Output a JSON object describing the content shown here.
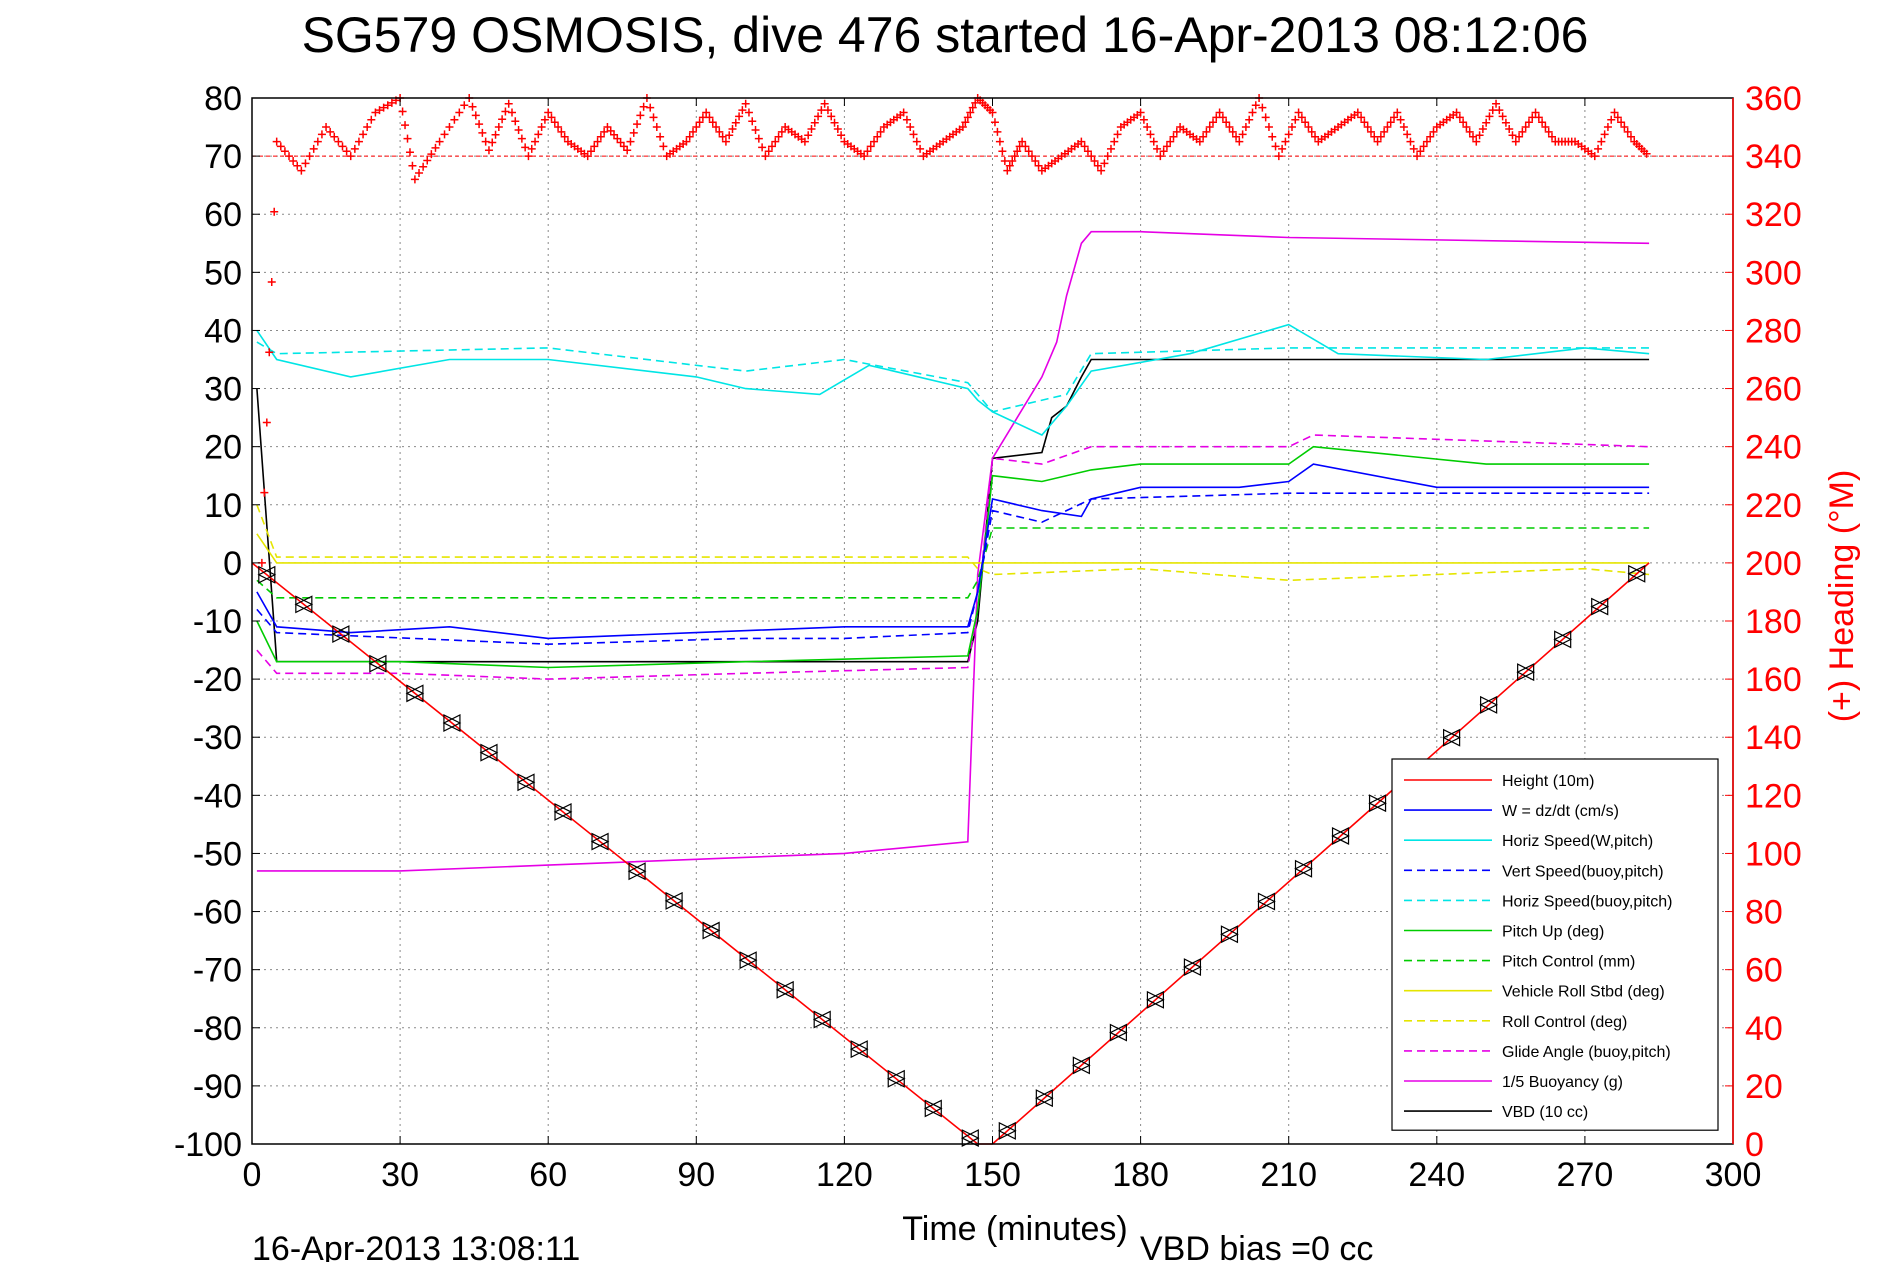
{
  "chart_data": {
    "type": "line",
    "title": "SG579 OSMOSIS, dive 476 started 16-Apr-2013 08:12:06",
    "xlabel": "Time (minutes)",
    "ylabel_right": "(+) Heading (°M)",
    "footer_date": "16-Apr-2013 13:08:11",
    "footer_note": "VBD bias =0 cc",
    "xlim": [
      0,
      300
    ],
    "ylim": [
      -100,
      80
    ],
    "ylim_right": [
      0,
      360
    ],
    "x_ticks": [
      "0",
      "30",
      "60",
      "90",
      "120",
      "150",
      "180",
      "210",
      "240",
      "270",
      "300"
    ],
    "y_ticks": [
      "80",
      "70",
      "60",
      "50",
      "40",
      "30",
      "20",
      "10",
      "0",
      "-10",
      "-20",
      "-30",
      "-40",
      "-50",
      "-60",
      "-70",
      "-80",
      "-90",
      "-100"
    ],
    "y_ticks_right": [
      "360",
      "340",
      "320",
      "300",
      "280",
      "260",
      "240",
      "220",
      "200",
      "180",
      "160",
      "140",
      "120",
      "100",
      "80",
      "60",
      "40",
      "20",
      "0"
    ],
    "grid": true,
    "legend_position": "bottom-right",
    "series": [
      {
        "name": "Height (10m)",
        "color": "#ff0000",
        "style": "solid",
        "x": [
          0,
          147,
          150,
          283
        ],
        "y": [
          0,
          -100,
          -100,
          0
        ]
      },
      {
        "name": "W = dz/dt (cm/s)",
        "color": "#0000ff",
        "style": "solid",
        "x": [
          1,
          5,
          20,
          40,
          60,
          90,
          120,
          145,
          147,
          150,
          160,
          168,
          170,
          180,
          200,
          210,
          215,
          240,
          260,
          283
        ],
        "y": [
          -5,
          -11,
          -12,
          -11,
          -13,
          -12,
          -11,
          -11,
          -5,
          11,
          9,
          8,
          11,
          13,
          13,
          14,
          17,
          13,
          13,
          13
        ]
      },
      {
        "name": "Horiz Speed(W,pitch)",
        "color": "#00e5e5",
        "style": "solid",
        "x": [
          1,
          5,
          20,
          40,
          60,
          90,
          100,
          115,
          125,
          145,
          147,
          150,
          160,
          165,
          170,
          190,
          210,
          220,
          250,
          270,
          283
        ],
        "y": [
          40,
          35,
          32,
          35,
          35,
          32,
          30,
          29,
          34,
          30,
          28,
          26,
          22,
          27,
          33,
          36,
          41,
          36,
          35,
          37,
          36
        ]
      },
      {
        "name": "Vert Speed(buoy,pitch)",
        "color": "#0000ff",
        "style": "dashed",
        "x": [
          1,
          5,
          60,
          100,
          120,
          145,
          147,
          150,
          160,
          170,
          210,
          240,
          283
        ],
        "y": [
          -8,
          -12,
          -14,
          -13,
          -13,
          -12,
          -5,
          9,
          7,
          11,
          12,
          12,
          12
        ]
      },
      {
        "name": "Horiz Speed(buoy,pitch)",
        "color": "#00e5e5",
        "style": "dashed",
        "x": [
          1,
          5,
          60,
          100,
          120,
          145,
          147,
          150,
          165,
          170,
          210,
          283
        ],
        "y": [
          38,
          36,
          37,
          33,
          35,
          31,
          29,
          26,
          29,
          36,
          37,
          37
        ]
      },
      {
        "name": "Pitch Up (deg)",
        "color": "#00cc00",
        "style": "solid",
        "x": [
          1,
          5,
          30,
          60,
          100,
          145,
          147,
          150,
          160,
          170,
          180,
          210,
          215,
          250,
          283
        ],
        "y": [
          -10,
          -17,
          -17,
          -18,
          -17,
          -16,
          -8,
          15,
          14,
          16,
          17,
          17,
          20,
          17,
          17
        ]
      },
      {
        "name": "Pitch Control (mm)",
        "color": "#00cc00",
        "style": "dashed",
        "x": [
          1,
          5,
          145,
          147,
          150,
          160,
          283
        ],
        "y": [
          -3,
          -6,
          -6,
          -3,
          6,
          6,
          6
        ]
      },
      {
        "name": "Vehicle Roll Stbd (deg)",
        "color": "#e5e500",
        "style": "solid",
        "x": [
          1,
          5,
          30,
          60,
          90,
          120,
          145,
          147,
          150,
          180,
          210,
          240,
          270,
          283
        ],
        "y": [
          5,
          0,
          0,
          0,
          0,
          0,
          0,
          0,
          0,
          0,
          0,
          0,
          0,
          0
        ]
      },
      {
        "name": "Roll Control (deg)",
        "color": "#e5e500",
        "style": "dashed",
        "x": [
          1,
          5,
          30,
          60,
          90,
          120,
          145,
          147,
          150,
          180,
          210,
          240,
          270,
          283
        ],
        "y": [
          10,
          1,
          1,
          1,
          1,
          1,
          1,
          -1,
          -2,
          -1,
          -3,
          -2,
          -1,
          -2
        ]
      },
      {
        "name": "Glide Angle (buoy,pitch)",
        "color": "#e500e5",
        "style": "dashed",
        "x": [
          1,
          5,
          30,
          60,
          100,
          145,
          147,
          150,
          160,
          170,
          210,
          215,
          283
        ],
        "y": [
          -15,
          -19,
          -19,
          -20,
          -19,
          -18,
          -8,
          18,
          17,
          20,
          20,
          22,
          20
        ]
      },
      {
        "name": "1/5 Buoyancy (g)",
        "color": "#e500e5",
        "style": "solid",
        "x": [
          1,
          5,
          30,
          60,
          90,
          120,
          145,
          147,
          150,
          160,
          163,
          165,
          168,
          170,
          180,
          210,
          283
        ],
        "y": [
          -53,
          -53,
          -53,
          -52,
          -51,
          -50,
          -48,
          -2,
          18,
          32,
          38,
          46,
          55,
          57,
          57,
          56,
          55
        ]
      },
      {
        "name": "VBD (10 cc)",
        "color": "#000000",
        "style": "solid",
        "x": [
          1,
          5,
          145,
          147,
          150,
          160,
          162,
          165,
          168,
          170,
          175,
          283
        ],
        "y": [
          30,
          -17,
          -17,
          -10,
          18,
          19,
          25,
          27,
          32,
          35,
          35,
          35
        ]
      }
    ],
    "heading_series": {
      "color": "#ff0000",
      "marker": "+",
      "x": [
        2,
        5,
        10,
        15,
        20,
        25,
        30,
        33,
        38,
        44,
        48,
        52,
        56,
        60,
        64,
        68,
        72,
        76,
        80,
        84,
        88,
        92,
        96,
        100,
        104,
        108,
        112,
        116,
        120,
        124,
        128,
        132,
        136,
        140,
        144,
        147,
        150,
        153,
        156,
        160,
        164,
        168,
        172,
        176,
        180,
        184,
        188,
        192,
        196,
        200,
        204,
        208,
        212,
        216,
        220,
        224,
        228,
        232,
        236,
        240,
        244,
        248,
        252,
        256,
        260,
        264,
        268,
        272,
        276,
        280,
        283
      ],
      "y": [
        200,
        345,
        335,
        350,
        340,
        355,
        360,
        332,
        345,
        360,
        342,
        358,
        340,
        355,
        345,
        340,
        350,
        342,
        360,
        340,
        345,
        355,
        345,
        358,
        340,
        350,
        345,
        358,
        345,
        340,
        350,
        355,
        340,
        345,
        350,
        360,
        355,
        335,
        345,
        335,
        340,
        345,
        335,
        350,
        355,
        340,
        350,
        345,
        355,
        345,
        360,
        340,
        355,
        345,
        350,
        355,
        345,
        355,
        340,
        350,
        355,
        345,
        358,
        345,
        355,
        345,
        345,
        340,
        355,
        345,
        340
      ]
    }
  }
}
